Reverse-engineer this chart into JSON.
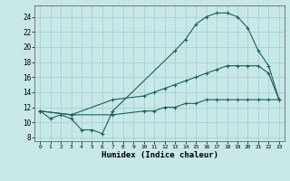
{
  "xlabel": "Humidex (Indice chaleur)",
  "bg_color": "#c8e8e8",
  "grid_color": "#a8d0d0",
  "line_color": "#1a6060",
  "xlim": [
    -0.5,
    23.5
  ],
  "ylim": [
    7.5,
    25.5
  ],
  "xticks": [
    0,
    1,
    2,
    3,
    4,
    5,
    6,
    7,
    8,
    9,
    10,
    11,
    12,
    13,
    14,
    15,
    16,
    17,
    18,
    19,
    20,
    21,
    22,
    23
  ],
  "yticks": [
    8,
    10,
    12,
    14,
    16,
    18,
    20,
    22,
    24
  ],
  "line1_x": [
    0,
    1,
    2,
    3,
    4,
    5,
    6,
    7,
    13,
    14,
    15,
    16,
    17,
    18,
    19,
    20,
    21,
    22,
    23
  ],
  "line1_y": [
    11.5,
    10.5,
    11.0,
    10.5,
    9.0,
    9.0,
    8.5,
    11.5,
    19.5,
    21.0,
    23.0,
    24.0,
    24.5,
    24.5,
    24.0,
    22.5,
    19.5,
    17.5,
    13.0
  ],
  "line2_x": [
    0,
    3,
    7,
    10,
    11,
    12,
    13,
    14,
    15,
    16,
    17,
    18,
    19,
    20,
    21,
    22,
    23
  ],
  "line2_y": [
    11.5,
    11.0,
    13.0,
    13.5,
    14.0,
    14.5,
    15.0,
    15.5,
    16.0,
    16.5,
    17.0,
    17.5,
    17.5,
    17.5,
    17.5,
    16.5,
    13.0
  ],
  "line3_x": [
    0,
    3,
    7,
    10,
    11,
    12,
    13,
    14,
    15,
    16,
    17,
    18,
    19,
    20,
    21,
    22,
    23
  ],
  "line3_y": [
    11.5,
    11.0,
    11.0,
    11.5,
    11.5,
    12.0,
    12.0,
    12.5,
    12.5,
    13.0,
    13.0,
    13.0,
    13.0,
    13.0,
    13.0,
    13.0,
    13.0
  ]
}
